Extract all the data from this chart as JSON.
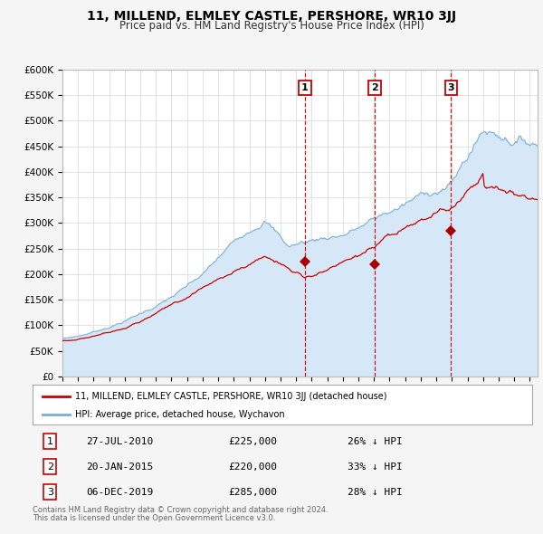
{
  "title": "11, MILLEND, ELMLEY CASTLE, PERSHORE, WR10 3JJ",
  "subtitle": "Price paid vs. HM Land Registry's House Price Index (HPI)",
  "legend_property": "11, MILLEND, ELMLEY CASTLE, PERSHORE, WR10 3JJ (detached house)",
  "legend_hpi": "HPI: Average price, detached house, Wychavon",
  "footer1": "Contains HM Land Registry data © Crown copyright and database right 2024.",
  "footer2": "This data is licensed under the Open Government Licence v3.0.",
  "transactions": [
    {
      "num": 1,
      "date": "27-JUL-2010",
      "date_val": 2010.57,
      "price": 225000,
      "label": "26% ↓ HPI"
    },
    {
      "num": 2,
      "date": "20-JAN-2015",
      "date_val": 2015.05,
      "price": 220000,
      "label": "33% ↓ HPI"
    },
    {
      "num": 3,
      "date": "06-DEC-2019",
      "date_val": 2019.93,
      "price": 285000,
      "label": "28% ↓ HPI"
    }
  ],
  "property_color": "#cc0000",
  "hpi_line_color": "#7bafd4",
  "hpi_fill_color": "#d6e8f7",
  "vline_color": "#cc0000",
  "marker_color": "#aa0000",
  "ylim": [
    0,
    600000
  ],
  "yticks": [
    0,
    50000,
    100000,
    150000,
    200000,
    250000,
    300000,
    350000,
    400000,
    450000,
    500000,
    550000,
    600000
  ],
  "xlim_start": 1995.0,
  "xlim_end": 2025.5,
  "background_color": "#f5f5f5",
  "plot_bg": "#ffffff",
  "grid_color": "#dddddd"
}
